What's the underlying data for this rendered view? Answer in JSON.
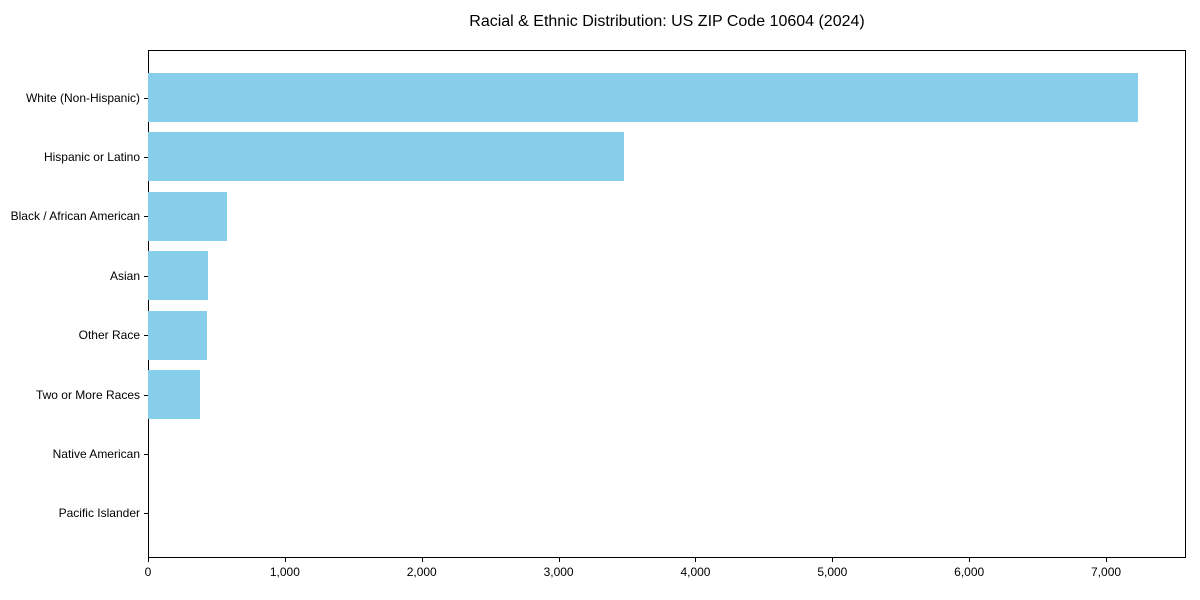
{
  "figure": {
    "background": "#ffffff"
  },
  "chart_data": {
    "type": "bar",
    "orientation": "horizontal",
    "title": "Racial & Ethnic Distribution: US ZIP Code 10604 (2024)",
    "categories": [
      "White (Non-Hispanic)",
      "Hispanic or Latino",
      "Black / African American",
      "Asian",
      "Other Race",
      "Two or More Races",
      "Native American",
      "Pacific Islander"
    ],
    "values": [
      7230,
      3480,
      580,
      440,
      430,
      380,
      0,
      0
    ],
    "xlabel": "",
    "ylabel": "",
    "xlim": [
      0,
      7584
    ],
    "xticks": {
      "values": [
        0,
        1000,
        2000,
        3000,
        4000,
        5000,
        6000,
        7000
      ],
      "labels": [
        "0",
        "1,000",
        "2,000",
        "3,000",
        "4,000",
        "5,000",
        "6,000",
        "7,000"
      ]
    },
    "bar_color": "#87CEEB",
    "grid": false,
    "legend": false
  }
}
